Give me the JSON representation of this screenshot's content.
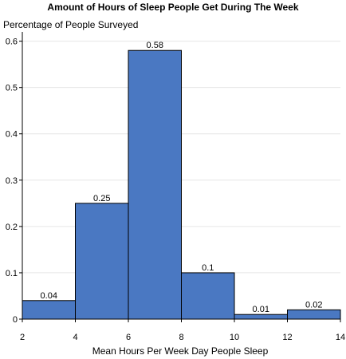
{
  "chart_data": {
    "type": "bar",
    "title": "Amount of Hours of Sleep People Get During The Week",
    "xlabel": "Mean Hours Per Week Day People Sleep",
    "ylabel": "Percentage of People Surveyed",
    "bins": [
      {
        "x_start": 2,
        "x_end": 4,
        "value": 0.04,
        "label": "0.04"
      },
      {
        "x_start": 4,
        "x_end": 6,
        "value": 0.25,
        "label": "0.25"
      },
      {
        "x_start": 6,
        "x_end": 8,
        "value": 0.58,
        "label": "0.58"
      },
      {
        "x_start": 8,
        "x_end": 10,
        "value": 0.1,
        "label": "0.1"
      },
      {
        "x_start": 10,
        "x_end": 12,
        "value": 0.01,
        "label": "0.01"
      },
      {
        "x_start": 12,
        "x_end": 14,
        "value": 0.02,
        "label": "0.02"
      }
    ],
    "xlim": [
      2,
      14
    ],
    "ylim": [
      0,
      0.62
    ],
    "xticks": [
      2,
      4,
      6,
      8,
      10,
      12,
      14
    ],
    "xtick_labels": [
      "2",
      "4",
      "6",
      "8",
      "10",
      "12",
      "14"
    ],
    "yticks": [
      0,
      0.1,
      0.2,
      0.3,
      0.4,
      0.5,
      0.6
    ],
    "ytick_labels": [
      "0",
      "0.1",
      "0.2",
      "0.3",
      "0.4",
      "0.5",
      "0.6"
    ],
    "grid": true,
    "bar_color": "#4a78c2",
    "bar_edge_color": "#000000",
    "grid_color": "#e6e6e6"
  }
}
